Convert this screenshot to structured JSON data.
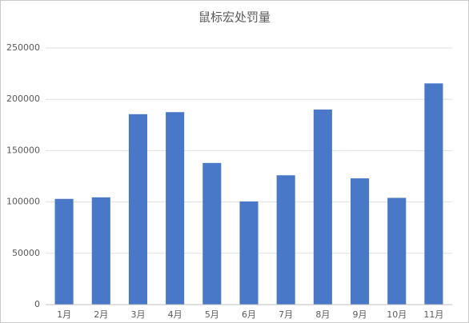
{
  "chart_data": {
    "type": "bar",
    "title": "鼠标宏处罚量",
    "categories": [
      "1月",
      "2月",
      "3月",
      "4月",
      "5月",
      "6月",
      "7月",
      "8月",
      "9月",
      "10月",
      "11月"
    ],
    "values": [
      103000,
      104500,
      185500,
      187500,
      138000,
      100500,
      126000,
      190000,
      123000,
      104000,
      215500
    ],
    "color": "#4a78c9",
    "ylim": [
      0,
      250000
    ],
    "yticks": [
      0,
      50000,
      100000,
      150000,
      200000,
      250000
    ],
    "grid": true
  }
}
